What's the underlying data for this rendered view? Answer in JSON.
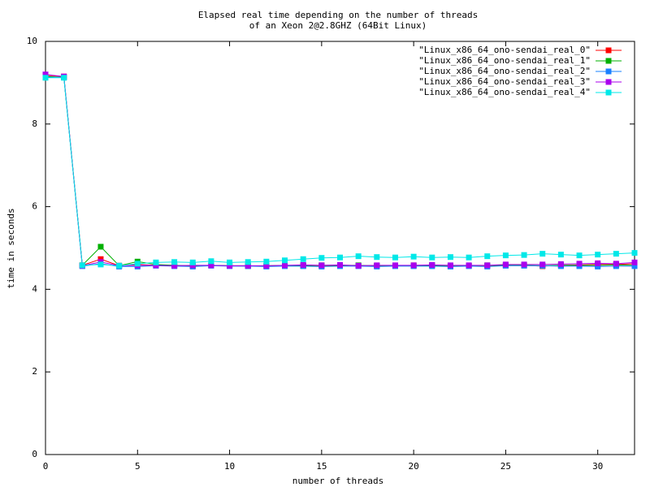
{
  "chart_data": {
    "type": "line",
    "title": [
      "Elapsed real time depending on the number of threads",
      "of an Xeon 2@2.8GHZ (64Bit Linux)"
    ],
    "x_label": "number of threads",
    "y_label": "time in seconds",
    "x": [
      0,
      1,
      2,
      3,
      4,
      5,
      6,
      7,
      8,
      9,
      10,
      11,
      12,
      13,
      14,
      15,
      16,
      17,
      18,
      19,
      20,
      21,
      22,
      23,
      24,
      25,
      26,
      27,
      28,
      29,
      30,
      31,
      32
    ],
    "xlim": [
      0,
      32
    ],
    "xticks": [
      0,
      5,
      10,
      15,
      20,
      25,
      30
    ],
    "ylim": [
      0,
      10
    ],
    "yticks": [
      0,
      2,
      4,
      6,
      8,
      10
    ],
    "legend": "top-right",
    "grid": false,
    "series": [
      {
        "name": "\"Linux_x86_64_ono-sendai_real_0\"",
        "color": "#ff0000",
        "values": [
          9.18,
          9.15,
          4.58,
          4.73,
          4.57,
          4.6,
          4.58,
          4.57,
          4.56,
          4.58,
          4.57,
          4.57,
          4.56,
          4.57,
          4.57,
          4.57,
          4.57,
          4.57,
          4.57,
          4.57,
          4.58,
          4.58,
          4.56,
          4.57,
          4.57,
          4.58,
          4.58,
          4.56,
          4.58,
          4.59,
          4.6,
          4.6,
          4.62
        ]
      },
      {
        "name": "\"Linux_x86_64_ono-sendai_real_1\"",
        "color": "#00b000",
        "values": [
          9.15,
          9.13,
          4.58,
          5.03,
          4.57,
          4.67,
          4.6,
          4.58,
          4.57,
          4.58,
          4.57,
          4.56,
          4.57,
          4.58,
          4.57,
          4.58,
          4.58,
          4.58,
          4.57,
          4.57,
          4.57,
          4.58,
          4.56,
          4.57,
          4.58,
          4.58,
          4.58,
          4.57,
          4.58,
          4.58,
          4.58,
          4.59,
          4.58
        ]
      },
      {
        "name": "\"Linux_x86_64_ono-sendai_real_2\"",
        "color": "#1a80ff",
        "values": [
          9.13,
          9.13,
          4.56,
          4.62,
          4.55,
          4.55,
          4.57,
          4.56,
          4.55,
          4.57,
          4.56,
          4.56,
          4.55,
          4.56,
          4.56,
          4.55,
          4.56,
          4.56,
          4.55,
          4.56,
          4.56,
          4.56,
          4.55,
          4.56,
          4.55,
          4.57,
          4.57,
          4.57,
          4.56,
          4.56,
          4.55,
          4.56,
          4.56
        ]
      },
      {
        "name": "\"Linux_x86_64_ono-sendai_real_3\"",
        "color": "#aa00ee",
        "values": [
          9.2,
          9.15,
          4.57,
          4.66,
          4.57,
          4.58,
          4.58,
          4.57,
          4.58,
          4.58,
          4.57,
          4.57,
          4.57,
          4.58,
          4.59,
          4.58,
          4.59,
          4.57,
          4.58,
          4.58,
          4.58,
          4.59,
          4.58,
          4.58,
          4.58,
          4.6,
          4.6,
          4.6,
          4.61,
          4.62,
          4.63,
          4.62,
          4.65
        ]
      },
      {
        "name": "\"Linux_x86_64_ono-sendai_real_4\"",
        "color": "#00e8e8",
        "values": [
          9.12,
          9.12,
          4.58,
          4.6,
          4.57,
          4.62,
          4.65,
          4.66,
          4.65,
          4.68,
          4.65,
          4.66,
          4.67,
          4.7,
          4.73,
          4.76,
          4.77,
          4.8,
          4.78,
          4.77,
          4.79,
          4.77,
          4.78,
          4.77,
          4.8,
          4.82,
          4.83,
          4.86,
          4.84,
          4.82,
          4.84,
          4.86,
          4.88
        ]
      }
    ]
  }
}
